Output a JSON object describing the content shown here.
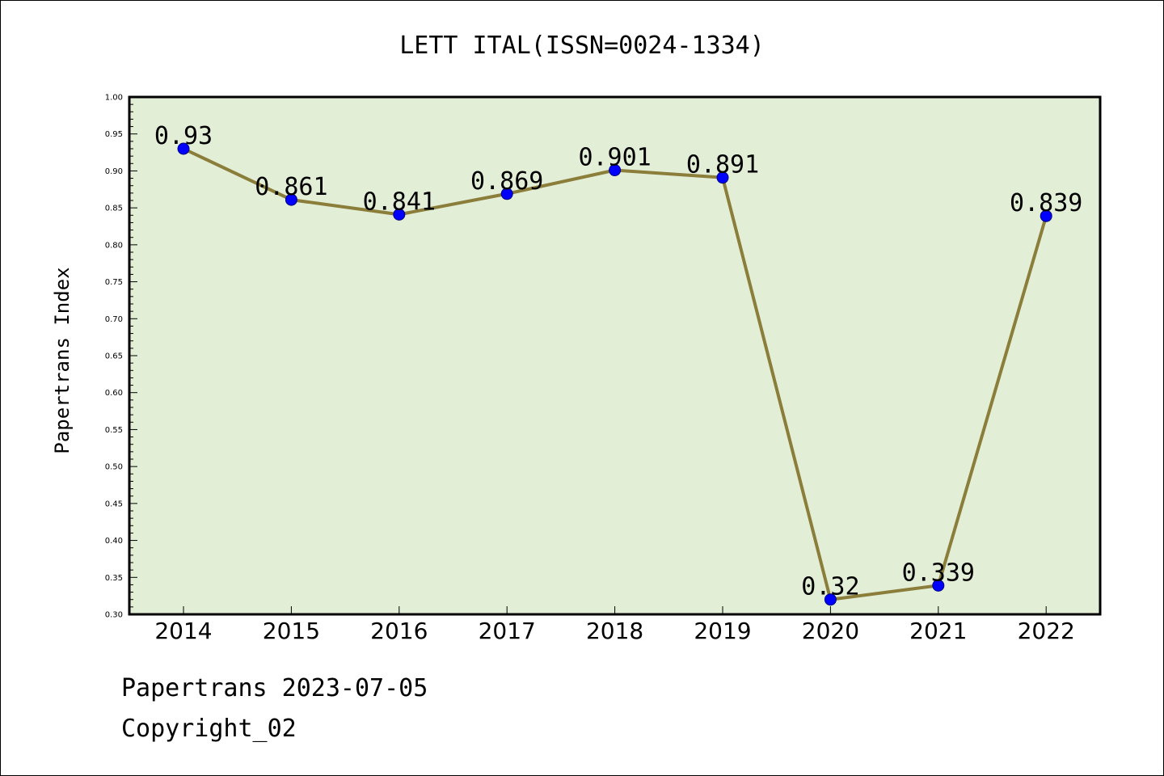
{
  "chart_data": {
    "type": "line",
    "title": "LETT ITAL(ISSN=0024-1334)",
    "ylabel": "Papertrans Index",
    "xlabel": "",
    "categories": [
      "2014",
      "2015",
      "2016",
      "2017",
      "2018",
      "2019",
      "2020",
      "2021",
      "2022"
    ],
    "series": [
      {
        "values": [
          0.93,
          0.861,
          0.841,
          0.869,
          0.901,
          0.891,
          0.32,
          0.339,
          0.839
        ],
        "labels": [
          "0.93",
          "0.861",
          "0.841",
          "0.869",
          "0.901",
          "0.891",
          "0.32",
          "0.339",
          "0.839"
        ]
      }
    ],
    "ylim": [
      0.3,
      1.0
    ],
    "yticks": [
      "0.30",
      "0.35",
      "0.40",
      "0.45",
      "0.50",
      "0.55",
      "0.60",
      "0.65",
      "0.70",
      "0.75",
      "0.80",
      "0.85",
      "0.90",
      "0.95",
      "1.00"
    ],
    "grid": false,
    "colors": {
      "plot_background": "#e2efd6",
      "line": "#8b7d3a",
      "marker": "#0000ff",
      "frame": "#000000"
    }
  },
  "footer": {
    "source": "Papertrans 2023-07-05",
    "copyright": "Copyright_02"
  }
}
